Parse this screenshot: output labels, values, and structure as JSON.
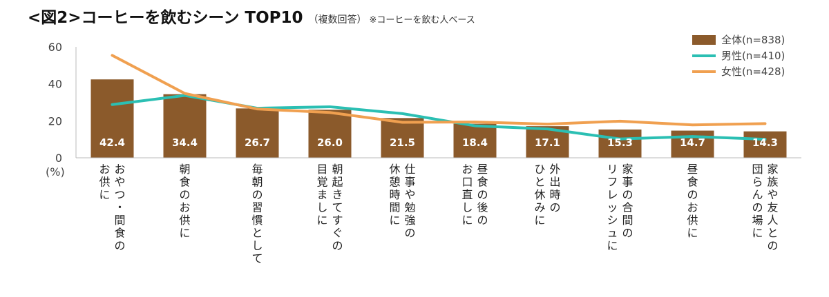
{
  "title": {
    "main": "<図2>コーヒーを飲むシーン TOP10",
    "sub": "（複数回答）",
    "note": "※コーヒーを飲む人ベース"
  },
  "chart_data": {
    "type": "bar",
    "unit_label": "(%)",
    "categories": [
      "おやつ・間食の\nお供に",
      "朝食のお供に",
      "毎朝の習慣として",
      "朝起きてすぐの\n目覚ましに",
      "仕事や勉強の\n休憩時間に",
      "昼食の後の\nお口直しに",
      "外出時の\nひと休みに",
      "家事の合間の\nリフレッシュに",
      "昼食のお供に",
      "家族や友人との\n団らんの場に"
    ],
    "series": [
      {
        "name": "全体(n=838)",
        "kind": "bar",
        "color": "#8B5A2B",
        "values": [
          42.4,
          34.4,
          26.7,
          26.0,
          21.5,
          18.4,
          17.1,
          15.3,
          14.7,
          14.3
        ]
      },
      {
        "name": "男性(n=410)",
        "kind": "line",
        "color": "#2BBFB3",
        "values": [
          28.8,
          33.7,
          26.8,
          27.6,
          23.9,
          17.3,
          15.6,
          10.2,
          11.5,
          10.0
        ]
      },
      {
        "name": "女性(n=428)",
        "kind": "line",
        "color": "#F0A050",
        "values": [
          55.4,
          34.8,
          26.4,
          24.5,
          19.2,
          19.4,
          18.2,
          19.8,
          17.8,
          18.5
        ]
      }
    ],
    "data_labels": [
      "42.4",
      "34.4",
      "26.7",
      "26.0",
      "21.5",
      "18.4",
      "17.1",
      "15.3",
      "14.7",
      "14.3"
    ],
    "yticks": [
      0,
      20,
      40,
      60
    ],
    "ylim": [
      0,
      60
    ],
    "grid": false,
    "legend_position": "top-right"
  }
}
